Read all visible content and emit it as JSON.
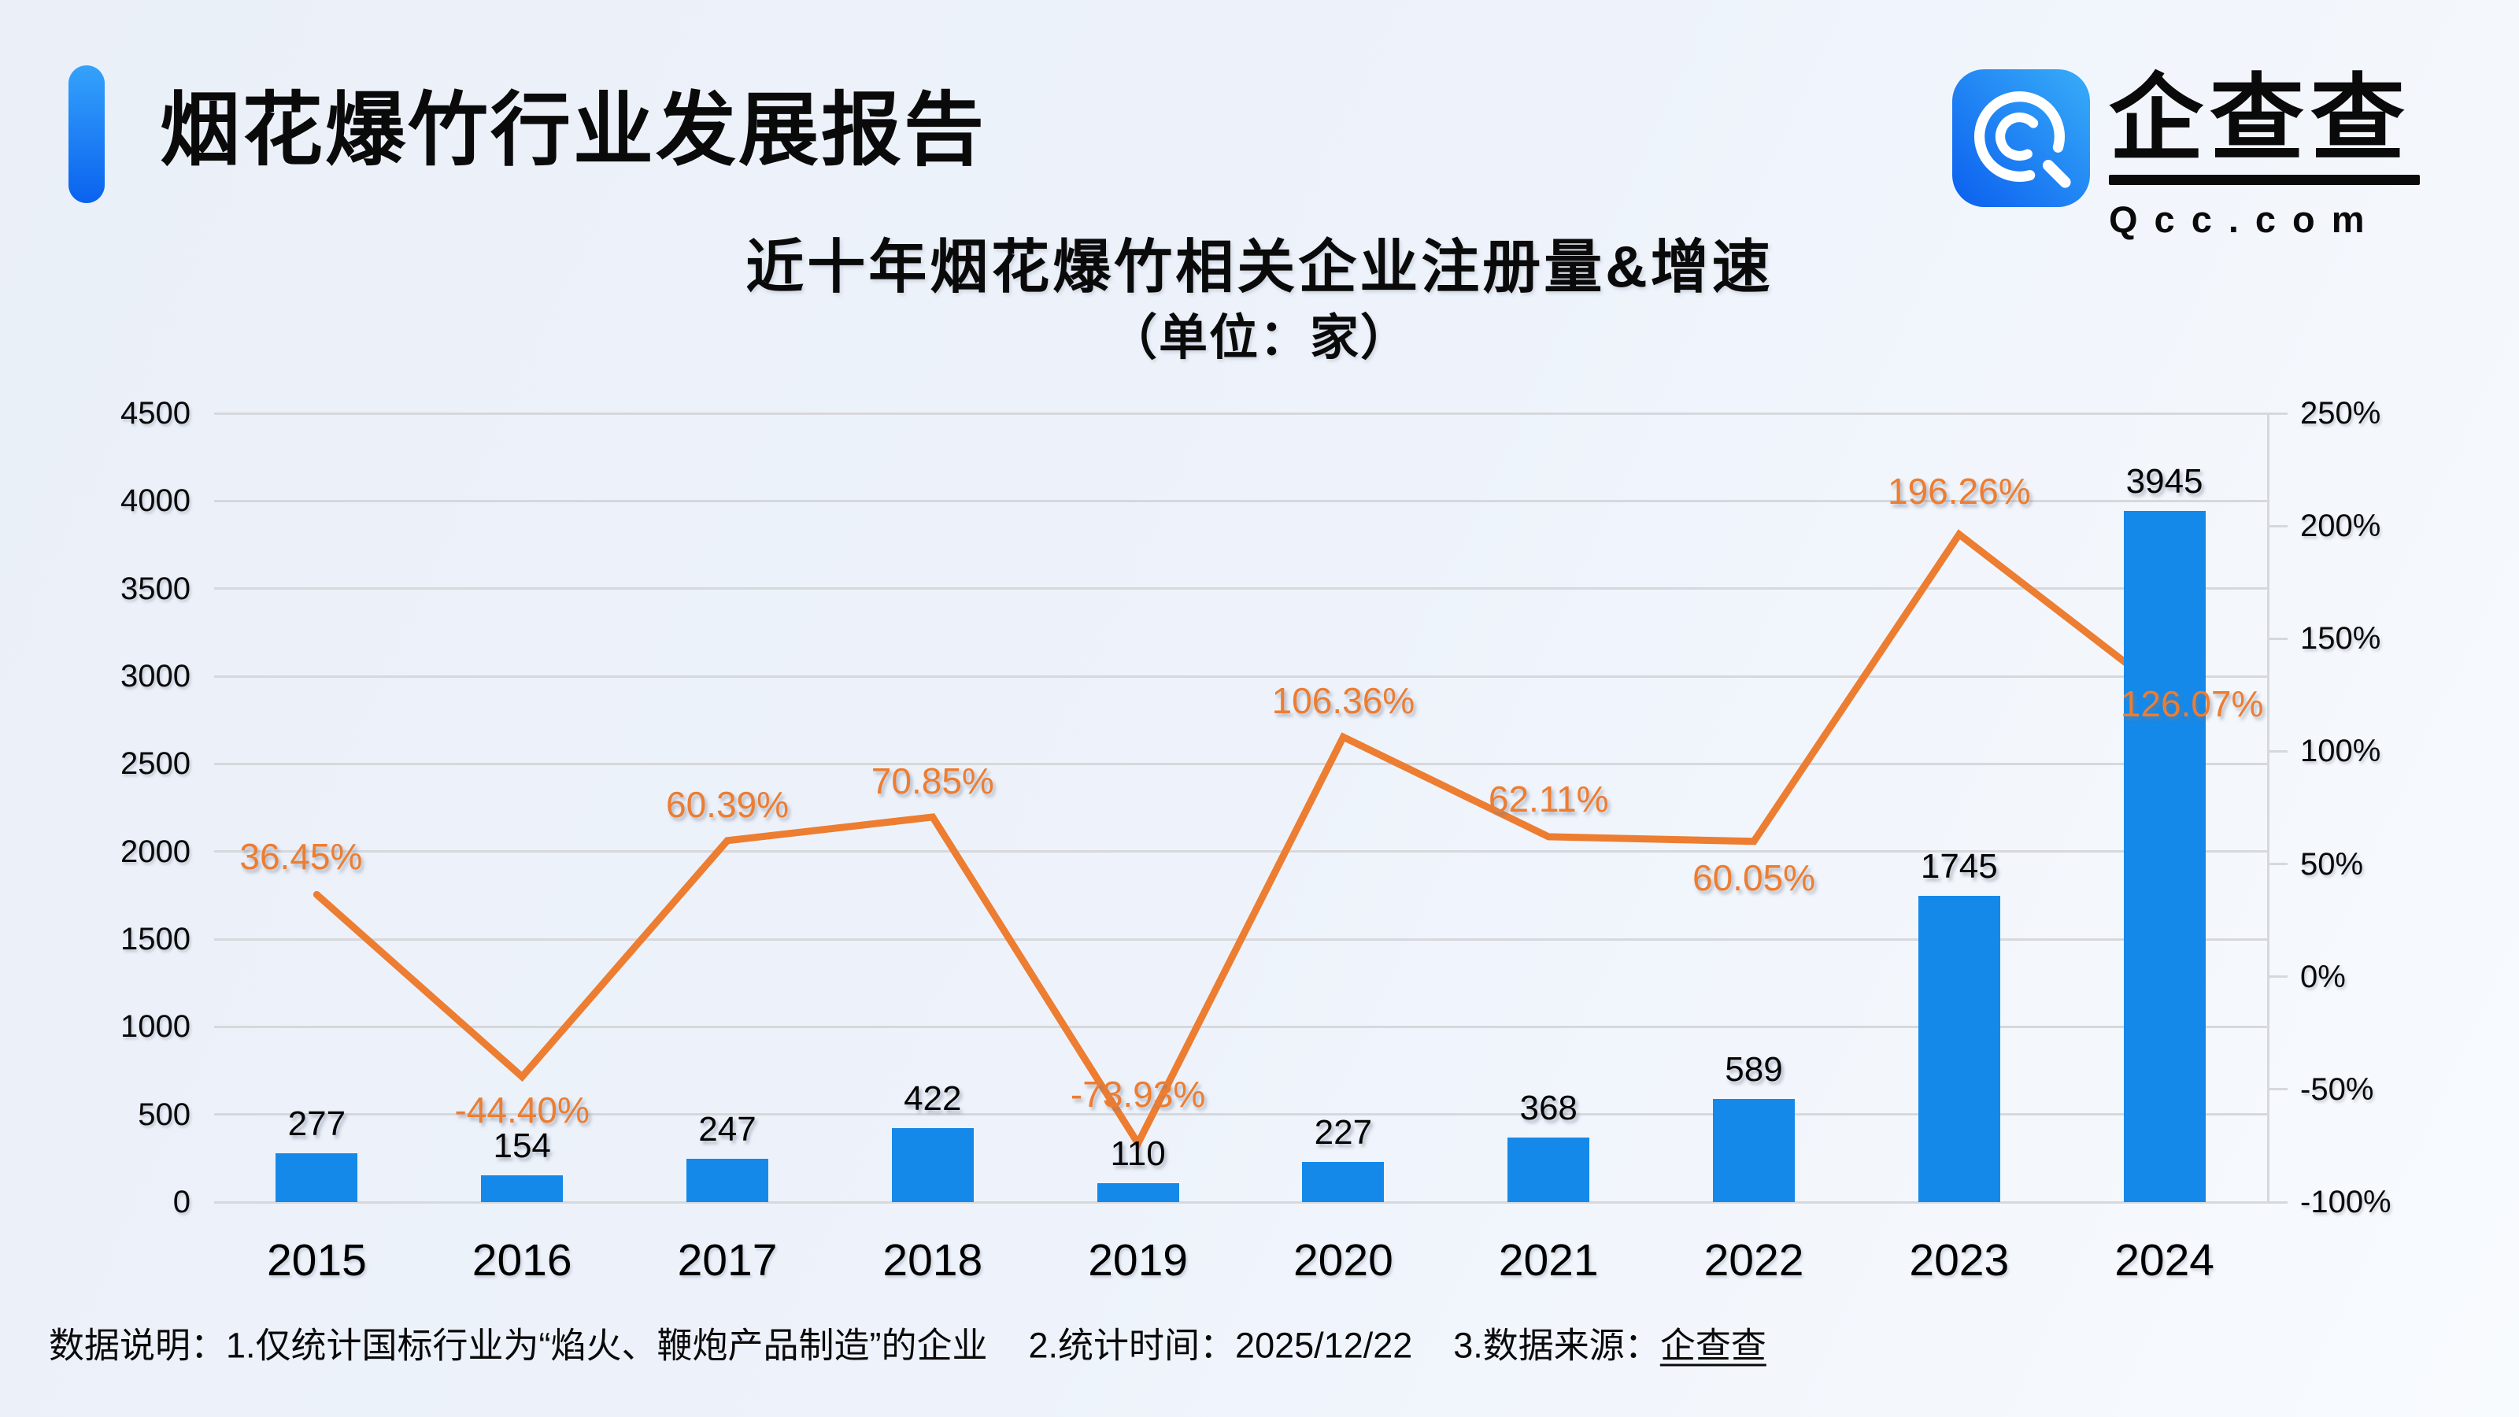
{
  "header": {
    "title": "烟花爆竹行业发展报告"
  },
  "logo": {
    "brand": "企查查",
    "domain": "Qcc.com",
    "icon": "qcc-magnifier-icon",
    "icon_colors": {
      "gradient_start": "#0B5FEF",
      "gradient_end": "#38ADF9",
      "glyph": "#FFFFFF"
    }
  },
  "chart_data": {
    "type": "bar+line",
    "title": "近十年烟花爆竹相关企业注册量&增速",
    "subtitle": "（单位：家）",
    "categories": [
      "2015",
      "2016",
      "2017",
      "2018",
      "2019",
      "2020",
      "2021",
      "2022",
      "2023",
      "2024"
    ],
    "series": [
      {
        "name": "注册量",
        "type": "bar",
        "color": "#1589E9",
        "values": [
          277,
          154,
          247,
          422,
          110,
          227,
          368,
          589,
          1745,
          3945
        ],
        "labels": [
          "277",
          "154",
          "247",
          "422",
          "110",
          "227",
          "368",
          "589",
          "1745",
          "3945"
        ]
      },
      {
        "name": "增速",
        "type": "line",
        "color": "#ED7D31",
        "unit": "%",
        "values": [
          36.45,
          -44.4,
          60.39,
          70.85,
          -73.93,
          106.36,
          62.11,
          60.05,
          196.26,
          126.07
        ],
        "labels": [
          "36.45%",
          "-44.40%",
          "60.39%",
          "70.85%",
          "-73.93%",
          "106.36%",
          "62.11%",
          "60.05%",
          "196.26%",
          "126.07%"
        ]
      }
    ],
    "left_axis": {
      "min": 0,
      "max": 4500,
      "step": 500,
      "tick_labels": [
        "0",
        "500",
        "1000",
        "1500",
        "2000",
        "2500",
        "3000",
        "3500",
        "4000",
        "4500"
      ]
    },
    "right_axis": {
      "min": -100,
      "max": 250,
      "step": 50,
      "tick_labels": [
        "-100%",
        "-50%",
        "0%",
        "50%",
        "100%",
        "150%",
        "200%",
        "250%"
      ]
    },
    "grid": true,
    "legend": false,
    "grid_color": "#D6D8DC"
  },
  "footnote": {
    "label": "数据说明：",
    "item1": "1.仅统计国标行业为“焰火、鞭炮产品制造”的企业",
    "item2": "2.统计时间：2025/12/22",
    "item3_prefix": "3.数据来源：",
    "item3_source": "企查查"
  }
}
